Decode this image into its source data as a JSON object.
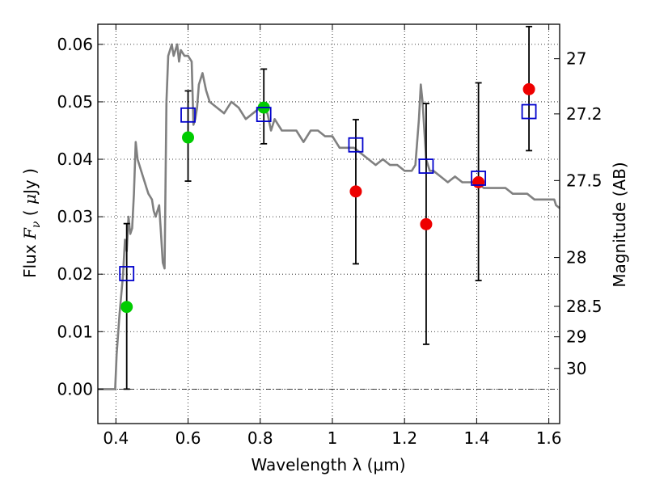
{
  "chart_data": {
    "type": "scatter",
    "xlabel": "Wavelength  λ (μm)",
    "ylabel_prefix": "Flux  ",
    "ylabel_var": "F",
    "ylabel_sub": "ν",
    "ylabel_unit_open": "  (  ",
    "ylabel_unit_mu": "μ",
    "ylabel_unit_rest": "Jy  )",
    "y2label": "Magnitude (AB)",
    "xlim": [
      0.35,
      1.63
    ],
    "ylim": [
      -0.006,
      0.0635
    ],
    "grid": true,
    "xticks": [
      {
        "value": 0.4,
        "label": "0.4"
      },
      {
        "value": 0.6,
        "label": "0.6"
      },
      {
        "value": 0.8,
        "label": "0.8"
      },
      {
        "value": 1.0,
        "label": "1"
      },
      {
        "value": 1.2,
        "label": "1.2"
      },
      {
        "value": 1.4,
        "label": "1.4"
      },
      {
        "value": 1.6,
        "label": "1.6"
      }
    ],
    "yticks": [
      {
        "value": 0.0,
        "label": "0.00"
      },
      {
        "value": 0.01,
        "label": "0.01"
      },
      {
        "value": 0.02,
        "label": "0.02"
      },
      {
        "value": 0.03,
        "label": "0.03"
      },
      {
        "value": 0.04,
        "label": "0.04"
      },
      {
        "value": 0.05,
        "label": "0.05"
      },
      {
        "value": 0.06,
        "label": "0.06"
      }
    ],
    "y2ticks": [
      {
        "flux": 0.0575,
        "label": "27"
      },
      {
        "flux": 0.0479,
        "label": "27.2"
      },
      {
        "flux": 0.0363,
        "label": "27.5"
      },
      {
        "flux": 0.0229,
        "label": "28"
      },
      {
        "flux": 0.0144,
        "label": "28.5"
      },
      {
        "flux": 0.0091,
        "label": "29"
      },
      {
        "flux": 0.0036,
        "label": "30"
      }
    ],
    "colors": {
      "model": "#808080",
      "green": "#00cc00",
      "red": "#ee0000",
      "square": "#0000cc",
      "error": "#000000"
    },
    "series": [
      {
        "name": "SED model",
        "kind": "line",
        "x": [
          0.35,
          0.398,
          0.402,
          0.41,
          0.42,
          0.425,
          0.43,
          0.435,
          0.44,
          0.445,
          0.45,
          0.455,
          0.46,
          0.465,
          0.47,
          0.48,
          0.485,
          0.49,
          0.5,
          0.505,
          0.51,
          0.52,
          0.525,
          0.53,
          0.535,
          0.54,
          0.545,
          0.55,
          0.555,
          0.56,
          0.57,
          0.575,
          0.58,
          0.59,
          0.6,
          0.61,
          0.615,
          0.62,
          0.625,
          0.63,
          0.64,
          0.65,
          0.66,
          0.68,
          0.7,
          0.72,
          0.74,
          0.76,
          0.78,
          0.8,
          0.82,
          0.83,
          0.84,
          0.85,
          0.86,
          0.88,
          0.9,
          0.92,
          0.94,
          0.96,
          0.98,
          1.0,
          1.02,
          1.04,
          1.06,
          1.08,
          1.1,
          1.12,
          1.14,
          1.16,
          1.18,
          1.2,
          1.22,
          1.23,
          1.24,
          1.245,
          1.25,
          1.255,
          1.26,
          1.27,
          1.28,
          1.3,
          1.32,
          1.34,
          1.36,
          1.38,
          1.4,
          1.42,
          1.44,
          1.46,
          1.48,
          1.5,
          1.52,
          1.54,
          1.56,
          1.58,
          1.6,
          1.615,
          1.62,
          1.63
        ],
        "y": [
          0.0,
          0.0,
          0.006,
          0.013,
          0.02,
          0.026,
          0.024,
          0.03,
          0.027,
          0.028,
          0.034,
          0.043,
          0.04,
          0.039,
          0.038,
          0.036,
          0.035,
          0.034,
          0.033,
          0.031,
          0.03,
          0.032,
          0.027,
          0.022,
          0.021,
          0.05,
          0.058,
          0.059,
          0.06,
          0.058,
          0.06,
          0.057,
          0.059,
          0.058,
          0.058,
          0.057,
          0.046,
          0.047,
          0.049,
          0.053,
          0.055,
          0.052,
          0.05,
          0.049,
          0.048,
          0.05,
          0.049,
          0.047,
          0.048,
          0.049,
          0.048,
          0.045,
          0.047,
          0.046,
          0.045,
          0.045,
          0.045,
          0.043,
          0.045,
          0.045,
          0.044,
          0.044,
          0.042,
          0.042,
          0.042,
          0.041,
          0.04,
          0.039,
          0.04,
          0.039,
          0.039,
          0.038,
          0.038,
          0.039,
          0.047,
          0.053,
          0.05,
          0.045,
          0.04,
          0.038,
          0.038,
          0.037,
          0.036,
          0.037,
          0.036,
          0.036,
          0.036,
          0.035,
          0.035,
          0.035,
          0.035,
          0.034,
          0.034,
          0.034,
          0.033,
          0.033,
          0.033,
          0.033,
          0.032,
          0.0315
        ]
      },
      {
        "name": "Observed flux (green)",
        "kind": "points",
        "color_key": "green",
        "x": [
          0.43,
          0.6,
          0.81
        ],
        "y": [
          0.0143,
          0.0438,
          0.049
        ]
      },
      {
        "name": "Observed flux (red)",
        "kind": "points",
        "color_key": "red",
        "x": [
          1.065,
          1.26,
          1.405,
          1.545
        ],
        "y": [
          0.0344,
          0.0287,
          0.036,
          0.0522
        ]
      },
      {
        "name": "Model synthetic flux",
        "kind": "squares",
        "color_key": "square",
        "x": [
          0.43,
          0.6,
          0.81,
          1.065,
          1.26,
          1.405,
          1.545
        ],
        "y": [
          0.0201,
          0.0477,
          0.0478,
          0.0425,
          0.0388,
          0.0367,
          0.0483
        ]
      },
      {
        "name": "Error bars",
        "kind": "errorbars",
        "x": [
          0.43,
          0.6,
          0.81,
          1.065,
          1.26,
          1.405,
          1.545
        ],
        "low": [
          0.0,
          0.0362,
          0.0427,
          0.0218,
          0.0078,
          0.0189,
          0.0415
        ],
        "high": [
          0.0288,
          0.0519,
          0.0557,
          0.0469,
          0.0497,
          0.0533,
          0.0631
        ]
      }
    ]
  }
}
